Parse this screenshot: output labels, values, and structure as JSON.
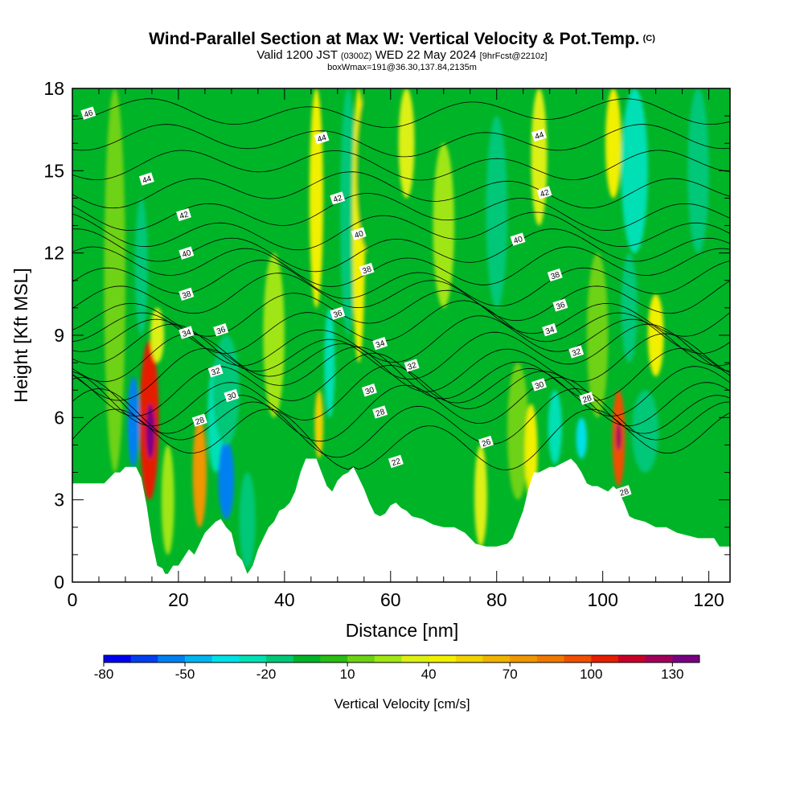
{
  "header": {
    "title": "Wind-Parallel Section at Max W: Vertical Velocity & Pot.Temp.",
    "copyright": "(C)",
    "valid_prefix": "Valid 1200 JST",
    "valid_utc": "(0300Z)",
    "valid_date": "WED 22 May 2024",
    "forecast": "[9hrFcst@2210z]",
    "box_info": "boxWmax=191@36.30,137.84,2135m"
  },
  "chart_data": {
    "type": "heatmap",
    "xlabel": "Distance [nm]",
    "ylabel": "Height [Kft MSL]",
    "xlim": [
      0,
      124
    ],
    "ylim": [
      0,
      18
    ],
    "x_ticks": [
      "0",
      "20",
      "40",
      "60",
      "80",
      "100",
      "120"
    ],
    "y_ticks": [
      "0",
      "3",
      "6",
      "9",
      "12",
      "15",
      "18"
    ],
    "colorbar": {
      "label": "Vertical Velocity [cm/s]",
      "tick_labels": [
        "-80",
        "-50",
        "-20",
        "10",
        "40",
        "70",
        "100",
        "130"
      ],
      "levels": [
        -80,
        -70,
        -60,
        -50,
        -40,
        -30,
        -20,
        -10,
        0,
        10,
        20,
        30,
        40,
        50,
        60,
        70,
        80,
        90,
        100,
        110,
        120,
        130,
        140
      ],
      "colors": [
        "#0000f0",
        "#0040f0",
        "#0080f0",
        "#00b4f0",
        "#00e0e8",
        "#00e0b4",
        "#00c878",
        "#00b428",
        "#28be14",
        "#6ed214",
        "#a0e614",
        "#dcf014",
        "#f0f000",
        "#f0d200",
        "#f0b400",
        "#f09600",
        "#f07800",
        "#f05000",
        "#e61e00",
        "#c80028",
        "#a0005a",
        "#780082"
      ]
    },
    "terrain": [
      [
        0,
        3.6
      ],
      [
        4,
        3.6
      ],
      [
        6,
        3.6
      ],
      [
        8,
        4.0
      ],
      [
        9,
        4.0
      ],
      [
        10,
        4.2
      ],
      [
        12,
        4.2
      ],
      [
        13,
        3.8
      ],
      [
        14,
        2.8
      ],
      [
        15,
        1.5
      ],
      [
        16,
        0.6
      ],
      [
        17,
        0.5
      ],
      [
        17.5,
        0.3
      ],
      [
        18,
        0.3
      ],
      [
        19,
        0.6
      ],
      [
        20,
        0.6
      ],
      [
        21,
        0.9
      ],
      [
        22,
        1.2
      ],
      [
        23,
        1.0
      ],
      [
        24,
        1.4
      ],
      [
        25,
        1.8
      ],
      [
        26,
        2.0
      ],
      [
        27,
        2.2
      ],
      [
        28,
        2.3
      ],
      [
        29,
        2.0
      ],
      [
        30,
        1.8
      ],
      [
        31,
        1.0
      ],
      [
        32,
        0.8
      ],
      [
        33,
        0.3
      ],
      [
        34,
        0.6
      ],
      [
        35,
        1.2
      ],
      [
        36,
        1.6
      ],
      [
        37,
        2.0
      ],
      [
        38,
        2.2
      ],
      [
        39,
        2.6
      ],
      [
        40,
        2.7
      ],
      [
        41,
        2.9
      ],
      [
        42,
        3.3
      ],
      [
        43,
        4.0
      ],
      [
        44,
        4.5
      ],
      [
        46,
        4.5
      ],
      [
        47,
        4.0
      ],
      [
        48,
        3.5
      ],
      [
        49,
        3.3
      ],
      [
        50,
        3.7
      ],
      [
        51,
        3.9
      ],
      [
        52,
        4.0
      ],
      [
        53,
        4.2
      ],
      [
        54,
        3.8
      ],
      [
        55,
        3.4
      ],
      [
        56,
        2.9
      ],
      [
        57,
        2.5
      ],
      [
        58,
        2.4
      ],
      [
        59,
        2.5
      ],
      [
        60,
        2.8
      ],
      [
        61,
        2.9
      ],
      [
        62,
        2.7
      ],
      [
        63,
        2.6
      ],
      [
        64,
        2.4
      ],
      [
        66,
        2.3
      ],
      [
        68,
        2.1
      ],
      [
        70,
        2.0
      ],
      [
        72,
        2.0
      ],
      [
        74,
        1.8
      ],
      [
        75,
        1.6
      ],
      [
        76,
        1.4
      ],
      [
        78,
        1.3
      ],
      [
        80,
        1.3
      ],
      [
        82,
        1.4
      ],
      [
        83,
        1.6
      ],
      [
        84,
        2.1
      ],
      [
        85,
        2.6
      ],
      [
        86,
        3.4
      ],
      [
        87,
        4.0
      ],
      [
        88,
        4.0
      ],
      [
        89,
        4.1
      ],
      [
        90,
        4.2
      ],
      [
        91,
        4.2
      ],
      [
        92,
        4.3
      ],
      [
        93,
        4.4
      ],
      [
        94,
        4.5
      ],
      [
        95,
        4.3
      ],
      [
        96,
        4.0
      ],
      [
        97,
        3.6
      ],
      [
        98,
        3.5
      ],
      [
        99,
        3.5
      ],
      [
        100,
        3.4
      ],
      [
        101,
        3.3
      ],
      [
        102,
        3.5
      ],
      [
        103,
        3.3
      ],
      [
        104,
        2.9
      ],
      [
        105,
        2.4
      ],
      [
        106,
        2.3
      ],
      [
        108,
        2.2
      ],
      [
        110,
        2.0
      ],
      [
        112,
        2.0
      ],
      [
        114,
        1.8
      ],
      [
        116,
        1.7
      ],
      [
        118,
        1.6
      ],
      [
        120,
        1.6
      ],
      [
        121,
        1.6
      ],
      [
        122,
        1.3
      ],
      [
        124,
        1.3
      ]
    ],
    "columns": [
      {
        "x": 8,
        "value": 10,
        "half_width": 2,
        "y_range": [
          4,
          18
        ]
      },
      {
        "x": 11.5,
        "value": -55,
        "half_width": 1.1,
        "y_range": [
          4.2,
          7.5
        ]
      },
      {
        "x": 14.5,
        "value": 100,
        "half_width": 1.8,
        "y_range": [
          3.0,
          8.8
        ]
      },
      {
        "x": 14.7,
        "value": 130,
        "half_width": 0.8,
        "y_range": [
          4.5,
          6.5
        ]
      },
      {
        "x": 13,
        "value": -20,
        "half_width": 1.2,
        "y_range": [
          9,
          14
        ]
      },
      {
        "x": 16,
        "value": 30,
        "half_width": 1.3,
        "y_range": [
          8,
          10
        ]
      },
      {
        "x": 18,
        "value": 20,
        "half_width": 1.2,
        "y_range": [
          1,
          5
        ]
      },
      {
        "x": 24,
        "value": 70,
        "half_width": 1.3,
        "y_range": [
          2,
          6
        ]
      },
      {
        "x": 27,
        "value": -30,
        "half_width": 1.5,
        "y_range": [
          4,
          8
        ]
      },
      {
        "x": 29,
        "value": -60,
        "half_width": 1.5,
        "y_range": [
          2.3,
          5.2
        ]
      },
      {
        "x": 29,
        "value": -20,
        "half_width": 2.5,
        "y_range": [
          5,
          9
        ]
      },
      {
        "x": 33,
        "value": -20,
        "half_width": 1.5,
        "y_range": [
          0.5,
          4
        ]
      },
      {
        "x": 38,
        "value": 20,
        "half_width": 2,
        "y_range": [
          6,
          12
        ]
      },
      {
        "x": 46,
        "value": 40,
        "half_width": 1.3,
        "y_range": [
          10,
          18
        ]
      },
      {
        "x": 46.5,
        "value": 50,
        "half_width": 0.8,
        "y_range": [
          4.5,
          7
        ]
      },
      {
        "x": 48.5,
        "value": -30,
        "half_width": 1,
        "y_range": [
          6,
          10
        ]
      },
      {
        "x": 52,
        "value": -20,
        "half_width": 1.5,
        "y_range": [
          9,
          18
        ]
      },
      {
        "x": 54,
        "value": 40,
        "half_width": 1.2,
        "y_range": [
          8,
          18
        ]
      },
      {
        "x": 56,
        "value": -10,
        "half_width": 2.5,
        "y_range": [
          12,
          18
        ]
      },
      {
        "x": 63,
        "value": 30,
        "half_width": 1.5,
        "y_range": [
          14,
          18
        ]
      },
      {
        "x": 70,
        "value": 20,
        "half_width": 2,
        "y_range": [
          10,
          16
        ]
      },
      {
        "x": 77,
        "value": 30,
        "half_width": 1.2,
        "y_range": [
          1.3,
          5
        ]
      },
      {
        "x": 80,
        "value": -20,
        "half_width": 2,
        "y_range": [
          10,
          17
        ]
      },
      {
        "x": 84,
        "value": 10,
        "half_width": 2,
        "y_range": [
          3,
          8
        ]
      },
      {
        "x": 86.5,
        "value": 40,
        "half_width": 1.2,
        "y_range": [
          3,
          6.5
        ]
      },
      {
        "x": 88,
        "value": 30,
        "half_width": 1.5,
        "y_range": [
          13,
          18
        ]
      },
      {
        "x": 91,
        "value": -30,
        "half_width": 1.3,
        "y_range": [
          4.3,
          7
        ]
      },
      {
        "x": 96,
        "value": -40,
        "half_width": 1,
        "y_range": [
          4.5,
          6
        ]
      },
      {
        "x": 99,
        "value": 10,
        "half_width": 2,
        "y_range": [
          6,
          12
        ]
      },
      {
        "x": 103,
        "value": 90,
        "half_width": 1.2,
        "y_range": [
          3.5,
          7
        ]
      },
      {
        "x": 103,
        "value": 120,
        "half_width": 0.5,
        "y_range": [
          4.8,
          5.8
        ]
      },
      {
        "x": 102,
        "value": 40,
        "half_width": 1.5,
        "y_range": [
          14,
          18
        ]
      },
      {
        "x": 105,
        "value": -20,
        "half_width": 1.5,
        "y_range": [
          8,
          12
        ]
      },
      {
        "x": 106,
        "value": -30,
        "half_width": 2.5,
        "y_range": [
          12,
          18
        ]
      },
      {
        "x": 110,
        "value": 40,
        "half_width": 1.5,
        "y_range": [
          7.5,
          10.5
        ]
      },
      {
        "x": 108,
        "value": -20,
        "half_width": 2.5,
        "y_range": [
          4,
          7
        ]
      },
      {
        "x": 118,
        "value": -20,
        "half_width": 2,
        "y_range": [
          12,
          18
        ]
      }
    ],
    "theta_contours": {
      "levels": [
        26,
        27,
        28,
        29,
        30,
        31,
        32,
        33,
        34,
        35,
        36,
        37,
        38,
        39,
        40,
        41,
        42,
        43,
        44,
        45,
        46
      ],
      "base_heights_kft": [
        5.2,
        5.8,
        6.3,
        6.8,
        7.2,
        7.6,
        8.0,
        8.4,
        8.8,
        9.3,
        9.8,
        10.4,
        10.9,
        11.5,
        12.1,
        12.8,
        13.5,
        14.3,
        15.2,
        16.1,
        17.1
      ]
    },
    "contour_labels": [
      {
        "text": "46",
        "x": 3,
        "y": 17.1
      },
      {
        "text": "44",
        "x": 14,
        "y": 14.7
      },
      {
        "text": "42",
        "x": 21,
        "y": 13.4
      },
      {
        "text": "40",
        "x": 21.5,
        "y": 12.0
      },
      {
        "text": "38",
        "x": 21.5,
        "y": 10.5
      },
      {
        "text": "34",
        "x": 21.5,
        "y": 9.1
      },
      {
        "text": "36",
        "x": 28,
        "y": 9.2
      },
      {
        "text": "32",
        "x": 27,
        "y": 7.7
      },
      {
        "text": "30",
        "x": 30,
        "y": 6.8
      },
      {
        "text": "28",
        "x": 24,
        "y": 5.9
      },
      {
        "text": "44",
        "x": 47,
        "y": 16.2
      },
      {
        "text": "42",
        "x": 50,
        "y": 14.0
      },
      {
        "text": "40",
        "x": 54,
        "y": 12.7
      },
      {
        "text": "38",
        "x": 55.5,
        "y": 11.4
      },
      {
        "text": "36",
        "x": 50,
        "y": 9.8
      },
      {
        "text": "34",
        "x": 58,
        "y": 8.7
      },
      {
        "text": "32",
        "x": 64,
        "y": 7.9
      },
      {
        "text": "30",
        "x": 56,
        "y": 7.0
      },
      {
        "text": "28",
        "x": 58,
        "y": 6.2
      },
      {
        "text": "26",
        "x": 78,
        "y": 5.1
      },
      {
        "text": "22",
        "x": 61,
        "y": 4.4
      },
      {
        "text": "44",
        "x": 88,
        "y": 16.3
      },
      {
        "text": "42",
        "x": 89,
        "y": 14.2
      },
      {
        "text": "40",
        "x": 84,
        "y": 12.5
      },
      {
        "text": "38",
        "x": 91,
        "y": 11.2
      },
      {
        "text": "36",
        "x": 92,
        "y": 10.1
      },
      {
        "text": "34",
        "x": 90,
        "y": 9.2
      },
      {
        "text": "32",
        "x": 95,
        "y": 8.4
      },
      {
        "text": "30",
        "x": 88,
        "y": 7.2
      },
      {
        "text": "28",
        "x": 97,
        "y": 6.7
      },
      {
        "text": "28",
        "x": 104,
        "y": 3.3
      }
    ]
  }
}
